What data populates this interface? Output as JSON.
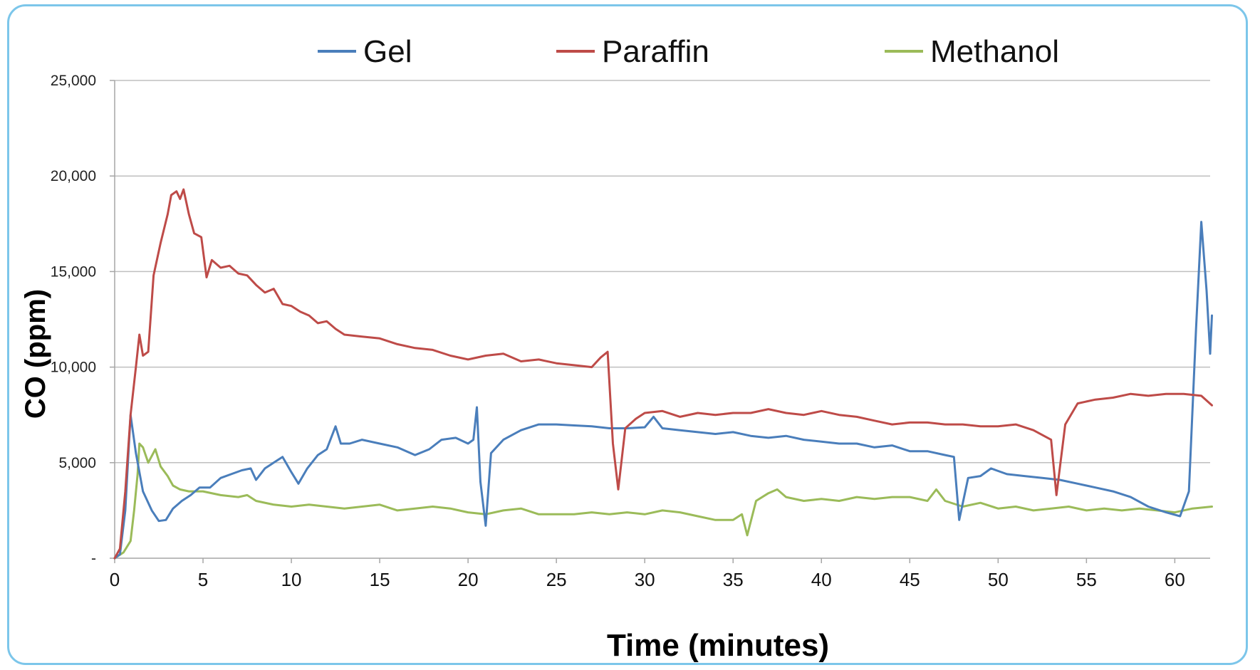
{
  "chart_data": {
    "type": "line",
    "title": "",
    "xlabel": "Time (minutes)",
    "ylabel": "CO (ppm)",
    "xlim": [
      0,
      62
    ],
    "ylim": [
      0,
      25000
    ],
    "xticks": [
      0,
      5,
      10,
      15,
      20,
      25,
      30,
      35,
      40,
      45,
      50,
      55,
      60
    ],
    "xtick_labels": [
      "0",
      "5",
      "10",
      "15",
      "20",
      "25",
      "30",
      "35",
      "40",
      "45",
      "50",
      "55",
      "60"
    ],
    "yticks": [
      0,
      5000,
      10000,
      15000,
      20000,
      25000
    ],
    "ytick_labels": [
      "-",
      "5,000",
      "10,000",
      "15,000",
      "20,000",
      "25,000"
    ],
    "grid": "horizontal",
    "legend": "top",
    "series": [
      {
        "name": "Gel",
        "color": "#4a7ebb",
        "points": [
          [
            0,
            0
          ],
          [
            0.3,
            200
          ],
          [
            0.6,
            2500
          ],
          [
            0.9,
            7500
          ],
          [
            1.2,
            5500
          ],
          [
            1.6,
            3500
          ],
          [
            2.1,
            2500
          ],
          [
            2.5,
            1950
          ],
          [
            2.9,
            2000
          ],
          [
            3.3,
            2600
          ],
          [
            3.8,
            3000
          ],
          [
            4.3,
            3300
          ],
          [
            4.8,
            3700
          ],
          [
            5.4,
            3700
          ],
          [
            6.0,
            4200
          ],
          [
            6.6,
            4400
          ],
          [
            7.2,
            4600
          ],
          [
            7.7,
            4700
          ],
          [
            8.0,
            4100
          ],
          [
            8.5,
            4700
          ],
          [
            9.0,
            5000
          ],
          [
            9.5,
            5300
          ],
          [
            10.0,
            4500
          ],
          [
            10.4,
            3900
          ],
          [
            10.9,
            4700
          ],
          [
            11.5,
            5400
          ],
          [
            12.0,
            5700
          ],
          [
            12.5,
            6900
          ],
          [
            12.8,
            6000
          ],
          [
            13.3,
            6000
          ],
          [
            14.0,
            6200
          ],
          [
            15.0,
            6000
          ],
          [
            16.0,
            5800
          ],
          [
            17.0,
            5400
          ],
          [
            17.8,
            5700
          ],
          [
            18.5,
            6200
          ],
          [
            19.3,
            6300
          ],
          [
            20.0,
            6000
          ],
          [
            20.3,
            6200
          ],
          [
            20.5,
            7900
          ],
          [
            20.7,
            4000
          ],
          [
            21.0,
            1700
          ],
          [
            21.3,
            5500
          ],
          [
            22.0,
            6200
          ],
          [
            23.0,
            6700
          ],
          [
            24.0,
            7000
          ],
          [
            25.0,
            7000
          ],
          [
            26.0,
            6950
          ],
          [
            27.0,
            6900
          ],
          [
            28.0,
            6800
          ],
          [
            29.0,
            6800
          ],
          [
            30.0,
            6850
          ],
          [
            30.5,
            7400
          ],
          [
            31.0,
            6800
          ],
          [
            32.0,
            6700
          ],
          [
            33.0,
            6600
          ],
          [
            34.0,
            6500
          ],
          [
            35.0,
            6600
          ],
          [
            36.0,
            6400
          ],
          [
            37.0,
            6300
          ],
          [
            38.0,
            6400
          ],
          [
            39.0,
            6200
          ],
          [
            40.0,
            6100
          ],
          [
            41.0,
            6000
          ],
          [
            42.0,
            6000
          ],
          [
            43.0,
            5800
          ],
          [
            44.0,
            5900
          ],
          [
            45.0,
            5600
          ],
          [
            46.0,
            5600
          ],
          [
            47.0,
            5400
          ],
          [
            47.5,
            5300
          ],
          [
            47.8,
            2000
          ],
          [
            48.3,
            4200
          ],
          [
            49.0,
            4300
          ],
          [
            49.6,
            4700
          ],
          [
            50.5,
            4400
          ],
          [
            51.5,
            4300
          ],
          [
            52.5,
            4200
          ],
          [
            53.5,
            4100
          ],
          [
            54.5,
            3900
          ],
          [
            55.5,
            3700
          ],
          [
            56.5,
            3500
          ],
          [
            57.5,
            3200
          ],
          [
            58.5,
            2700
          ],
          [
            59.5,
            2400
          ],
          [
            60.3,
            2200
          ],
          [
            60.8,
            3500
          ],
          [
            61.2,
            12000
          ],
          [
            61.5,
            17600
          ],
          [
            61.8,
            14000
          ],
          [
            62.0,
            10700
          ],
          [
            62.1,
            12700
          ]
        ]
      },
      {
        "name": "Paraffin",
        "color": "#be4b48",
        "points": [
          [
            0,
            0
          ],
          [
            0.3,
            500
          ],
          [
            0.6,
            3500
          ],
          [
            0.9,
            7500
          ],
          [
            1.2,
            10000
          ],
          [
            1.4,
            11700
          ],
          [
            1.6,
            10600
          ],
          [
            1.9,
            10800
          ],
          [
            2.2,
            14800
          ],
          [
            2.6,
            16500
          ],
          [
            3.0,
            18000
          ],
          [
            3.2,
            19000
          ],
          [
            3.5,
            19200
          ],
          [
            3.7,
            18800
          ],
          [
            3.9,
            19300
          ],
          [
            4.2,
            18000
          ],
          [
            4.5,
            17000
          ],
          [
            4.9,
            16800
          ],
          [
            5.2,
            14700
          ],
          [
            5.5,
            15600
          ],
          [
            6.0,
            15200
          ],
          [
            6.5,
            15300
          ],
          [
            7.0,
            14900
          ],
          [
            7.5,
            14800
          ],
          [
            8.0,
            14300
          ],
          [
            8.5,
            13900
          ],
          [
            9.0,
            14100
          ],
          [
            9.5,
            13300
          ],
          [
            10.0,
            13200
          ],
          [
            10.5,
            12900
          ],
          [
            11.0,
            12700
          ],
          [
            11.5,
            12300
          ],
          [
            12.0,
            12400
          ],
          [
            12.5,
            12000
          ],
          [
            13.0,
            11700
          ],
          [
            14.0,
            11600
          ],
          [
            15.0,
            11500
          ],
          [
            16.0,
            11200
          ],
          [
            17.0,
            11000
          ],
          [
            18.0,
            10900
          ],
          [
            19.0,
            10600
          ],
          [
            20.0,
            10400
          ],
          [
            21.0,
            10600
          ],
          [
            22.0,
            10700
          ],
          [
            23.0,
            10300
          ],
          [
            24.0,
            10400
          ],
          [
            25.0,
            10200
          ],
          [
            26.0,
            10100
          ],
          [
            27.0,
            10000
          ],
          [
            27.5,
            10500
          ],
          [
            27.9,
            10800
          ],
          [
            28.2,
            6000
          ],
          [
            28.5,
            3600
          ],
          [
            28.9,
            6800
          ],
          [
            29.5,
            7300
          ],
          [
            30.0,
            7600
          ],
          [
            31.0,
            7700
          ],
          [
            32.0,
            7400
          ],
          [
            33.0,
            7600
          ],
          [
            34.0,
            7500
          ],
          [
            35.0,
            7600
          ],
          [
            36.0,
            7600
          ],
          [
            37.0,
            7800
          ],
          [
            38.0,
            7600
          ],
          [
            39.0,
            7500
          ],
          [
            40.0,
            7700
          ],
          [
            41.0,
            7500
          ],
          [
            42.0,
            7400
          ],
          [
            43.0,
            7200
          ],
          [
            44.0,
            7000
          ],
          [
            45.0,
            7100
          ],
          [
            46.0,
            7100
          ],
          [
            47.0,
            7000
          ],
          [
            48.0,
            7000
          ],
          [
            49.0,
            6900
          ],
          [
            50.0,
            6900
          ],
          [
            51.0,
            7000
          ],
          [
            52.0,
            6700
          ],
          [
            53.0,
            6200
          ],
          [
            53.3,
            3300
          ],
          [
            53.8,
            7000
          ],
          [
            54.5,
            8100
          ],
          [
            55.5,
            8300
          ],
          [
            56.5,
            8400
          ],
          [
            57.5,
            8600
          ],
          [
            58.5,
            8500
          ],
          [
            59.5,
            8600
          ],
          [
            60.5,
            8600
          ],
          [
            61.5,
            8500
          ],
          [
            62.1,
            8000
          ]
        ]
      },
      {
        "name": "Methanol",
        "color": "#9bbb59",
        "points": [
          [
            0,
            0
          ],
          [
            0.5,
            300
          ],
          [
            0.9,
            900
          ],
          [
            1.1,
            2500
          ],
          [
            1.3,
            4400
          ],
          [
            1.4,
            6000
          ],
          [
            1.6,
            5800
          ],
          [
            1.9,
            5000
          ],
          [
            2.3,
            5700
          ],
          [
            2.6,
            4800
          ],
          [
            3.0,
            4300
          ],
          [
            3.3,
            3800
          ],
          [
            3.7,
            3600
          ],
          [
            4.2,
            3500
          ],
          [
            5.0,
            3500
          ],
          [
            6.0,
            3300
          ],
          [
            7.0,
            3200
          ],
          [
            7.5,
            3300
          ],
          [
            8.0,
            3000
          ],
          [
            9.0,
            2800
          ],
          [
            10.0,
            2700
          ],
          [
            11.0,
            2800
          ],
          [
            12.0,
            2700
          ],
          [
            13.0,
            2600
          ],
          [
            14.0,
            2700
          ],
          [
            15.0,
            2800
          ],
          [
            16.0,
            2500
          ],
          [
            17.0,
            2600
          ],
          [
            18.0,
            2700
          ],
          [
            19.0,
            2600
          ],
          [
            20.0,
            2400
          ],
          [
            21.0,
            2300
          ],
          [
            22.0,
            2500
          ],
          [
            23.0,
            2600
          ],
          [
            24.0,
            2300
          ],
          [
            25.0,
            2300
          ],
          [
            26.0,
            2300
          ],
          [
            27.0,
            2400
          ],
          [
            28.0,
            2300
          ],
          [
            29.0,
            2400
          ],
          [
            30.0,
            2300
          ],
          [
            31.0,
            2500
          ],
          [
            32.0,
            2400
          ],
          [
            33.0,
            2200
          ],
          [
            34.0,
            2000
          ],
          [
            35.0,
            2000
          ],
          [
            35.5,
            2300
          ],
          [
            35.8,
            1200
          ],
          [
            36.3,
            3000
          ],
          [
            37.0,
            3400
          ],
          [
            37.5,
            3600
          ],
          [
            38.0,
            3200
          ],
          [
            39.0,
            3000
          ],
          [
            40.0,
            3100
          ],
          [
            41.0,
            3000
          ],
          [
            42.0,
            3200
          ],
          [
            43.0,
            3100
          ],
          [
            44.0,
            3200
          ],
          [
            45.0,
            3200
          ],
          [
            46.0,
            3000
          ],
          [
            46.5,
            3600
          ],
          [
            47.0,
            3000
          ],
          [
            48.0,
            2700
          ],
          [
            49.0,
            2900
          ],
          [
            50.0,
            2600
          ],
          [
            51.0,
            2700
          ],
          [
            52.0,
            2500
          ],
          [
            53.0,
            2600
          ],
          [
            54.0,
            2700
          ],
          [
            55.0,
            2500
          ],
          [
            56.0,
            2600
          ],
          [
            57.0,
            2500
          ],
          [
            58.0,
            2600
          ],
          [
            59.0,
            2500
          ],
          [
            60.0,
            2400
          ],
          [
            61.0,
            2600
          ],
          [
            62.1,
            2700
          ]
        ]
      }
    ]
  }
}
